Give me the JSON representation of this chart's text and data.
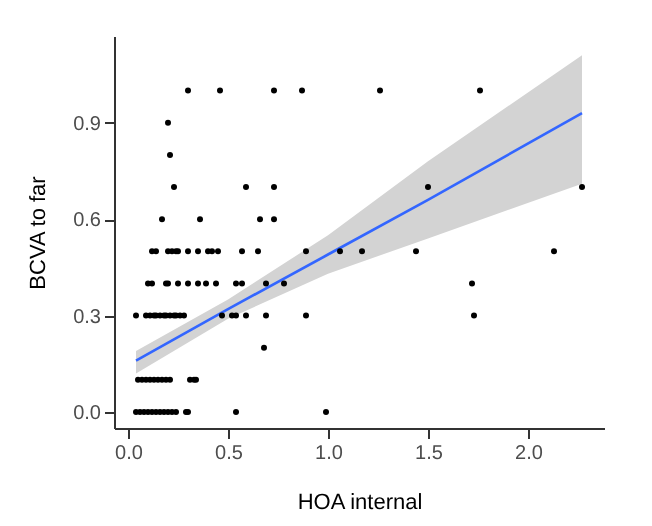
{
  "chart_data": {
    "type": "scatter",
    "xlabel": "HOA internal",
    "ylabel": "BCVA to far",
    "xlim": [
      -0.07,
      2.38
    ],
    "ylim": [
      -0.05,
      1.17
    ],
    "xticks": [
      {
        "value": 0,
        "label": "0.0"
      },
      {
        "value": 0.5,
        "label": "0.5"
      },
      {
        "value": 1,
        "label": "1.0"
      },
      {
        "value": 1.5,
        "label": "1.5"
      },
      {
        "value": 2,
        "label": "2.0"
      }
    ],
    "yticks": [
      {
        "value": 0,
        "label": "0.0"
      },
      {
        "value": 0.3,
        "label": "0.3"
      },
      {
        "value": 0.6,
        "label": "0.6"
      },
      {
        "value": 0.9,
        "label": "0.9"
      }
    ],
    "grid": false,
    "series": [
      {
        "marker": "circle",
        "color": "#000000",
        "x": [
          0.3,
          0.46,
          0.73,
          0.87,
          1.26,
          1.76,
          0.2,
          0.21,
          0.23,
          0.59,
          0.73,
          1.5,
          2.27,
          0.17,
          0.36,
          0.66,
          0.73,
          0.12,
          0.14,
          0.2,
          0.22,
          0.24,
          0.25,
          0.3,
          0.35,
          0.4,
          0.42,
          0.45,
          0.57,
          0.65,
          0.89,
          1.06,
          1.17,
          1.44,
          2.13,
          0.1,
          0.12,
          0.19,
          0.2,
          0.25,
          0.3,
          0.35,
          0.39,
          0.44,
          0.54,
          0.57,
          0.69,
          0.78,
          1.72,
          0.04,
          0.09,
          0.11,
          0.13,
          0.14,
          0.16,
          0.18,
          0.19,
          0.21,
          0.23,
          0.24,
          0.26,
          0.28,
          0.47,
          0.52,
          0.54,
          0.59,
          0.69,
          0.89,
          1.73,
          0.68,
          0.05,
          0.07,
          0.09,
          0.11,
          0.13,
          0.15,
          0.17,
          0.19,
          0.21,
          0.31,
          0.33,
          0.34,
          0.04,
          0.06,
          0.08,
          0.1,
          0.12,
          0.14,
          0.16,
          0.18,
          0.2,
          0.22,
          0.24,
          0.29,
          0.3,
          0.54,
          0.99
        ],
        "values": [
          1.0,
          1.0,
          1.0,
          1.0,
          1.0,
          1.0,
          0.9,
          0.8,
          0.7,
          0.7,
          0.7,
          0.7,
          0.7,
          0.6,
          0.6,
          0.6,
          0.6,
          0.5,
          0.5,
          0.5,
          0.5,
          0.5,
          0.5,
          0.5,
          0.5,
          0.5,
          0.5,
          0.5,
          0.5,
          0.5,
          0.5,
          0.5,
          0.5,
          0.5,
          0.5,
          0.4,
          0.4,
          0.4,
          0.4,
          0.4,
          0.4,
          0.4,
          0.4,
          0.4,
          0.4,
          0.4,
          0.4,
          0.4,
          0.4,
          0.3,
          0.3,
          0.3,
          0.3,
          0.3,
          0.3,
          0.3,
          0.3,
          0.3,
          0.3,
          0.3,
          0.3,
          0.3,
          0.3,
          0.3,
          0.3,
          0.3,
          0.3,
          0.3,
          0.3,
          0.2,
          0.1,
          0.1,
          0.1,
          0.1,
          0.1,
          0.1,
          0.1,
          0.1,
          0.1,
          0.1,
          0.1,
          0.1,
          0.0,
          0.0,
          0.0,
          0.0,
          0.0,
          0.0,
          0.0,
          0.0,
          0.0,
          0.0,
          0.0,
          0.0,
          0.0,
          0.0,
          0.0
        ]
      },
      {
        "type": "line",
        "color": "#3366ff",
        "x": [
          0.04,
          0.5,
          1.0,
          1.5,
          2.27
        ],
        "values": [
          0.16,
          0.32,
          0.49,
          0.66,
          0.93
        ],
        "lower": [
          0.12,
          0.29,
          0.43,
          0.54,
          0.71
        ],
        "upper": [
          0.19,
          0.35,
          0.55,
          0.78,
          1.11
        ]
      }
    ]
  }
}
